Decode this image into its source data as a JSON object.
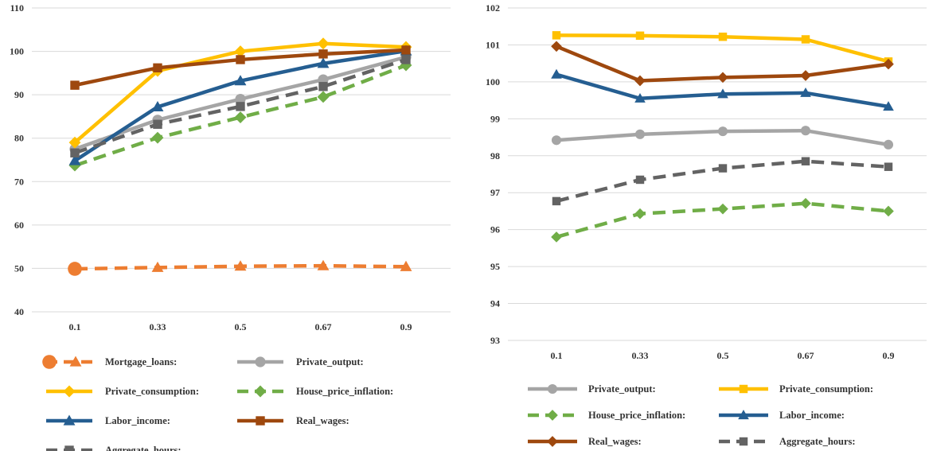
{
  "chart_data": [
    {
      "type": "line",
      "categories": [
        "0.1",
        "0.33",
        "0.5",
        "0.67",
        "0.9"
      ],
      "ylim": [
        40,
        110
      ],
      "yticks": [
        40,
        50,
        60,
        70,
        80,
        90,
        100,
        110
      ],
      "grid": true,
      "legend_position": "bottom",
      "series": [
        {
          "name": "Mortgage_loans:",
          "values": [
            49.9,
            50.2,
            50.5,
            50.6,
            50.4
          ],
          "color": "#ed7d31",
          "dash": true,
          "marker": "triangle",
          "legend_marker": "circle"
        },
        {
          "name": "Private_output:",
          "values": [
            77.5,
            84.2,
            89.0,
            93.5,
            98.7
          ],
          "color": "#a5a5a5",
          "dash": false,
          "marker": "circle"
        },
        {
          "name": "Private_consumption:",
          "values": [
            79.0,
            95.5,
            100.0,
            101.8,
            101.0
          ],
          "color": "#ffc000",
          "dash": false,
          "marker": "diamond"
        },
        {
          "name": "House_price_inflation:",
          "values": [
            73.7,
            80.1,
            84.8,
            89.5,
            96.8
          ],
          "color": "#70ad47",
          "dash": true,
          "marker": "diamond"
        },
        {
          "name": "Labor_income:",
          "values": [
            74.8,
            87.2,
            93.2,
            97.2,
            100.1
          ],
          "color": "#255e91",
          "dash": false,
          "marker": "triangle"
        },
        {
          "name": "Real_wages:",
          "values": [
            92.2,
            96.2,
            98.1,
            99.4,
            100.3
          ],
          "color": "#9e480e",
          "dash": false,
          "marker": "square"
        },
        {
          "name": "Aggregate_hours:",
          "values": [
            76.6,
            83.2,
            87.3,
            91.9,
            98.1
          ],
          "color": "#636363",
          "dash": true,
          "marker": "square"
        }
      ]
    },
    {
      "type": "line",
      "categories": [
        "0.1",
        "0.33",
        "0.5",
        "0.67",
        "0.9"
      ],
      "ylim": [
        93,
        102
      ],
      "yticks": [
        93,
        94,
        95,
        96,
        97,
        98,
        99,
        100,
        101,
        102
      ],
      "grid": true,
      "legend_position": "bottom",
      "series": [
        {
          "name": "Private_output:",
          "values": [
            98.42,
            98.58,
            98.66,
            98.68,
            98.3
          ],
          "color": "#a5a5a5",
          "dash": false,
          "marker": "circle"
        },
        {
          "name": "Private_consumption:",
          "values": [
            101.26,
            101.25,
            101.22,
            101.15,
            100.55
          ],
          "color": "#ffc000",
          "dash": false,
          "marker": "square"
        },
        {
          "name": "House_price_inflation:",
          "values": [
            95.8,
            96.43,
            96.56,
            96.71,
            96.5
          ],
          "color": "#70ad47",
          "dash": true,
          "marker": "diamond"
        },
        {
          "name": "Labor_income:",
          "values": [
            100.2,
            99.55,
            99.67,
            99.7,
            99.33
          ],
          "color": "#255e91",
          "dash": false,
          "marker": "triangle"
        },
        {
          "name": "Real_wages:",
          "values": [
            100.96,
            100.03,
            100.12,
            100.17,
            100.48
          ],
          "color": "#9e480e",
          "dash": false,
          "marker": "diamond"
        },
        {
          "name": "Aggregate_hours:",
          "values": [
            96.77,
            97.35,
            97.66,
            97.85,
            97.7
          ],
          "color": "#636363",
          "dash": true,
          "marker": "square"
        }
      ]
    }
  ]
}
